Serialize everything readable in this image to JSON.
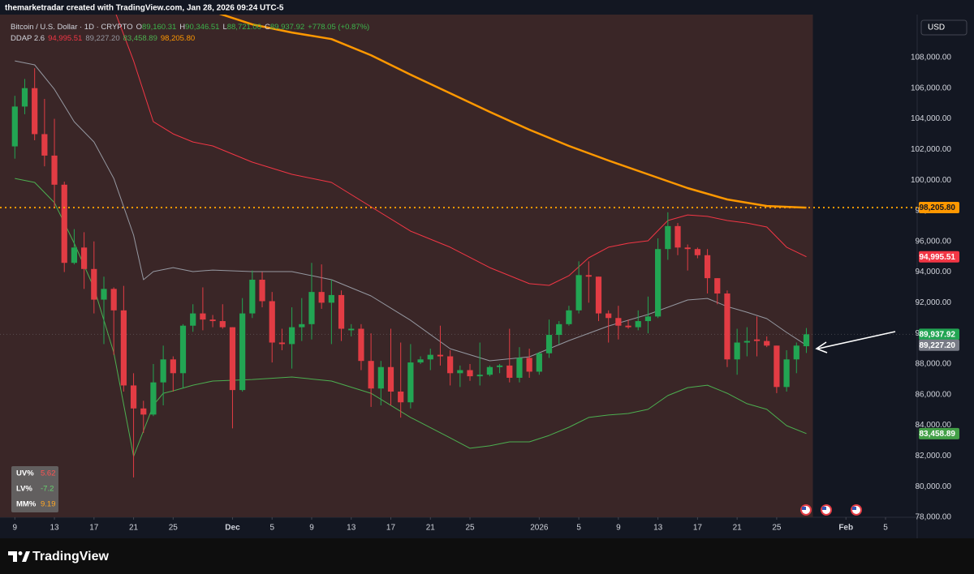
{
  "header": "themarketradar created with TradingView.com, Jan 28, 2026 09:24 UTC-5",
  "legend": {
    "symbol": "Bitcoin / U.S. Dollar · 1D · CRYPTO",
    "ohlc": [
      {
        "key": "O",
        "value": "89,160.31"
      },
      {
        "key": "H",
        "value": "90,346.51"
      },
      {
        "key": "L",
        "value": "88,721.00"
      },
      {
        "key": "C",
        "value": "89,937.92"
      }
    ],
    "change": "+778.05 (+0.87%)",
    "value_color": "#3cb44b",
    "indicator": "DDAP 2.6",
    "indicator_values": [
      {
        "value": "94,995.51",
        "color": "#f23645"
      },
      {
        "value": "89,227.20",
        "color": "#9598a1"
      },
      {
        "value": "83,458.89",
        "color": "#4caf50"
      },
      {
        "value": "98,205.80",
        "color": "#ff9800"
      }
    ]
  },
  "currency": "USD",
  "stats": [
    {
      "label": "UV%",
      "value": "5.62",
      "color": "#ff5252"
    },
    {
      "label": "LV%",
      "value": "-7.2",
      "color": "#66d36e"
    },
    {
      "label": "MM%",
      "value": "9.19",
      "color": "#ffa726"
    }
  ],
  "brand": "TradingView",
  "chart_data": {
    "type": "candlestick",
    "xlim": [
      -1.5,
      91.2
    ],
    "ylim": [
      78000,
      110800
    ],
    "up_color": "#22a553",
    "down_color": "#e23c44",
    "xticks": [
      {
        "value": 0,
        "label": "9"
      },
      {
        "value": 4,
        "label": "13"
      },
      {
        "value": 8,
        "label": "17"
      },
      {
        "value": 12,
        "label": "21"
      },
      {
        "value": 16,
        "label": "25"
      },
      {
        "value": 22,
        "label": "Dec"
      },
      {
        "value": 26,
        "label": "5"
      },
      {
        "value": 30,
        "label": "9"
      },
      {
        "value": 34,
        "label": "13"
      },
      {
        "value": 38,
        "label": "17"
      },
      {
        "value": 42,
        "label": "21"
      },
      {
        "value": 46,
        "label": "25"
      },
      {
        "value": 53,
        "label": "2026"
      },
      {
        "value": 57,
        "label": "5"
      },
      {
        "value": 61,
        "label": "9"
      },
      {
        "value": 65,
        "label": "13"
      },
      {
        "value": 69,
        "label": "17"
      },
      {
        "value": 73,
        "label": "21"
      },
      {
        "value": 77,
        "label": "25"
      },
      {
        "value": 84,
        "label": "Feb"
      },
      {
        "value": 88,
        "label": "5"
      }
    ],
    "yticks": [
      {
        "value": 108000,
        "label": "108,000.00"
      },
      {
        "value": 106000,
        "label": "106,000.00"
      },
      {
        "value": 104000,
        "label": "104,000.00"
      },
      {
        "value": 102000,
        "label": "102,000.00"
      },
      {
        "value": 100000,
        "label": "100,000.00"
      },
      {
        "value": 98000,
        "label": "98,000.00"
      },
      {
        "value": 96000,
        "label": "96,000.00"
      },
      {
        "value": 94000,
        "label": "94,000.00"
      },
      {
        "value": 92000,
        "label": "92,000.00"
      },
      {
        "value": 90000,
        "label": "90,000.00"
      },
      {
        "value": 88000,
        "label": "88,000.00"
      },
      {
        "value": 86000,
        "label": "86,000.00"
      },
      {
        "value": 84000,
        "label": "84,000.00"
      },
      {
        "value": 82000,
        "label": "82,000.00"
      },
      {
        "value": 80000,
        "label": "80,000.00"
      },
      {
        "value": 78000,
        "label": "78,000.00"
      }
    ],
    "open": [
      102200,
      104800,
      106000,
      103000,
      101600,
      99700,
      94600,
      95600,
      94200,
      92200,
      92900,
      91500,
      86600,
      85100,
      84700,
      86800,
      88300,
      87400,
      90500,
      91300,
      90900,
      90800,
      90400,
      86300,
      91300,
      93500,
      92100,
      89400,
      89300,
      90400,
      90600,
      92700,
      92000,
      92500,
      90200,
      90300,
      88200,
      86400,
      87800,
      86200,
      85500,
      88100,
      88300,
      88600,
      88500,
      87400,
      87600,
      87200,
      87300,
      87800,
      87900,
      87100,
      88400,
      87500,
      88700,
      89900,
      90600,
      91500,
      93800,
      93700,
      91300,
      91000,
      90500,
      90400,
      90800,
      91100,
      95500,
      97000,
      95600,
      95500,
      95100,
      93600,
      92600,
      88300,
      89400,
      89600,
      89500,
      89200,
      86500,
      88300,
      89160.31
    ],
    "high": [
      105500,
      106600,
      107300,
      105300,
      104000,
      99900,
      96800,
      96600,
      96000,
      93700,
      93000,
      93100,
      87400,
      85600,
      88000,
      89200,
      88500,
      90600,
      91900,
      93000,
      91200,
      91900,
      90400,
      92300,
      94100,
      94000,
      92700,
      90300,
      91700,
      92300,
      94600,
      94500,
      93500,
      92800,
      90600,
      90600,
      90000,
      88200,
      90300,
      89400,
      89300,
      88500,
      89000,
      90500,
      88900,
      87900,
      88000,
      89400,
      87900,
      88000,
      90300,
      89100,
      89000,
      88800,
      90900,
      90800,
      91800,
      94700,
      94700,
      93700,
      91500,
      91800,
      90900,
      91500,
      92400,
      96200,
      97900,
      97200,
      95800,
      95600,
      95500,
      93600,
      92800,
      90300,
      90400,
      91100,
      89800,
      89200,
      88900,
      89400,
      90346.51
    ],
    "low": [
      101400,
      104300,
      102600,
      100900,
      98200,
      94000,
      94500,
      92900,
      91300,
      89300,
      88600,
      86200,
      80600,
      83500,
      84600,
      85300,
      86200,
      86400,
      90100,
      90200,
      90400,
      90300,
      83800,
      86200,
      91000,
      91700,
      88100,
      88900,
      87700,
      89500,
      89600,
      91600,
      89300,
      89500,
      89800,
      87600,
      85200,
      85300,
      85300,
      84500,
      85100,
      88000,
      87600,
      87900,
      86600,
      86500,
      86900,
      86600,
      87200,
      87400,
      86800,
      86800,
      87100,
      87300,
      88400,
      89300,
      90500,
      91300,
      92000,
      90800,
      89400,
      89600,
      90300,
      90200,
      90000,
      91000,
      94800,
      95100,
      94100,
      94900,
      92600,
      91900,
      87800,
      87300,
      88500,
      88500,
      89100,
      86100,
      86200,
      87400,
      88721
    ],
    "close": [
      104800,
      106000,
      103000,
      101600,
      99700,
      94600,
      95600,
      94200,
      92200,
      92900,
      91500,
      86600,
      85100,
      84700,
      86800,
      88300,
      87400,
      90500,
      91300,
      90900,
      90800,
      90400,
      86300,
      91300,
      93500,
      92100,
      89400,
      89300,
      90400,
      90600,
      92700,
      92000,
      92500,
      90300,
      90300,
      88200,
      86400,
      87800,
      86200,
      85500,
      88100,
      88300,
      88600,
      88500,
      87400,
      87600,
      87200,
      87300,
      87800,
      87900,
      87100,
      88400,
      87500,
      88700,
      89900,
      90600,
      91500,
      93800,
      93700,
      91300,
      91000,
      90500,
      90400,
      90800,
      91100,
      95500,
      97000,
      95600,
      95500,
      95100,
      93600,
      92600,
      88300,
      89400,
      89500,
      89500,
      89200,
      86500,
      88300,
      89200,
      89937.92
    ],
    "series": [
      {
        "color": "#ff9800",
        "width": 2.5,
        "x": [
          20,
          24,
          28,
          32,
          36,
          40,
          44,
          48,
          52,
          56,
          60,
          64,
          68,
          72,
          76,
          80
        ],
        "values": [
          111000,
          110160,
          109630,
          109200,
          108150,
          106880,
          105670,
          104450,
          103290,
          102230,
          101280,
          100380,
          99480,
          98740,
          98310,
          98205.8
        ]
      },
      {
        "color": "#f23645",
        "width": 1,
        "x": [
          10,
          12,
          14,
          16,
          18,
          20,
          24,
          28,
          32,
          36,
          40,
          44,
          48,
          52,
          54,
          56,
          58,
          60,
          62,
          64,
          66,
          68,
          70,
          72,
          74,
          76,
          78,
          80
        ],
        "values": [
          111200,
          107780,
          103810,
          103020,
          102490,
          102230,
          101170,
          100380,
          99850,
          98260,
          96670,
          95620,
          94290,
          93240,
          93130,
          93760,
          94930,
          95620,
          95880,
          96040,
          97360,
          97730,
          97630,
          97360,
          97200,
          96940,
          95620,
          94995.51
        ]
      },
      {
        "color": "#9598a1",
        "width": 1,
        "x": [
          0,
          2,
          4,
          6,
          8,
          10,
          12,
          13,
          14,
          16,
          18,
          20,
          24,
          28,
          32,
          36,
          40,
          44,
          48,
          52,
          56,
          60,
          64,
          68,
          70,
          72,
          74,
          76,
          78,
          80
        ],
        "values": [
          107780,
          107520,
          105930,
          103810,
          102490,
          100110,
          96410,
          93500,
          94030,
          94290,
          94030,
          94130,
          94030,
          94030,
          93500,
          92440,
          90850,
          89000,
          88210,
          88470,
          89530,
          90480,
          91230,
          92180,
          92280,
          91750,
          91380,
          90960,
          90060,
          89227.2
        ]
      },
      {
        "color": "#4caf50",
        "width": 1,
        "x": [
          0,
          2,
          4,
          6,
          8,
          10,
          12,
          14,
          15,
          16,
          18,
          20,
          24,
          28,
          32,
          36,
          40,
          44,
          46,
          48,
          50,
          52,
          54,
          56,
          58,
          60,
          62,
          64,
          66,
          68,
          70,
          72,
          74,
          76,
          78,
          80
        ],
        "values": [
          100110,
          99850,
          98530,
          95880,
          92970,
          88740,
          81970,
          85300,
          86090,
          86250,
          86620,
          86890,
          86990,
          87150,
          86890,
          86090,
          84510,
          83180,
          82500,
          82660,
          82920,
          82920,
          83340,
          83870,
          84510,
          84670,
          84770,
          85040,
          85940,
          86460,
          86620,
          86090,
          85410,
          85040,
          83980,
          83458.89
        ]
      }
    ],
    "price_tags": [
      {
        "value": 98205.8,
        "label": "98,205.80",
        "color": "#ff9800",
        "text_color": "#131722",
        "line": "dotted"
      },
      {
        "value": 94995.51,
        "label": "94,995.51",
        "color": "#f23645",
        "text_color": "#ffffff"
      },
      {
        "value": 89937.92,
        "label": "89,937.92",
        "color": "#22a553",
        "text_color": "#ffffff",
        "line": "faint"
      },
      {
        "value": 89227.2,
        "label": "89,227.20",
        "color": "#787b86",
        "text_color": "#ffffff"
      },
      {
        "value": 83458.89,
        "label": "83,458.89",
        "color": "#43a047",
        "text_color": "#ffffff"
      }
    ]
  }
}
